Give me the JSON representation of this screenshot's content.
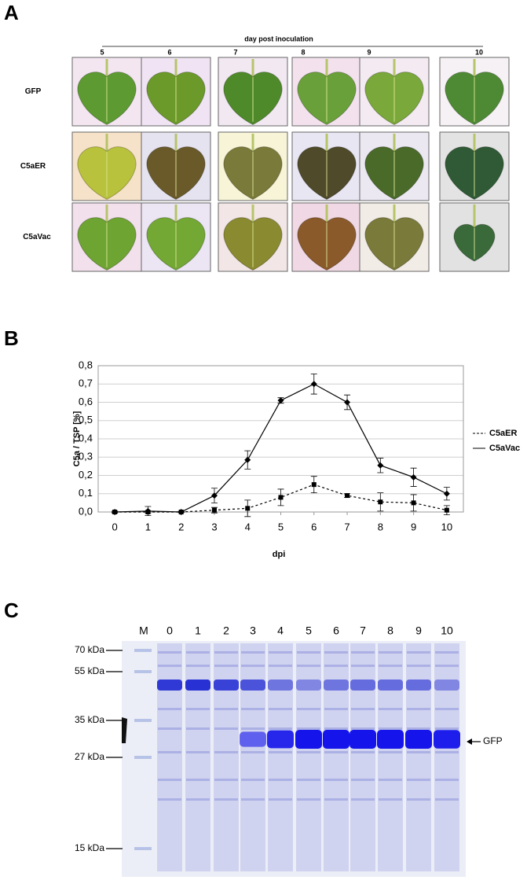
{
  "panel_a": {
    "label": "A",
    "axis_title": "day post inoculation",
    "columns": [
      "5",
      "6",
      "7",
      "8",
      "9",
      "10"
    ],
    "rows": [
      "GFP",
      "C5aER",
      "C5aVac"
    ]
  },
  "chart_data": {
    "type": "line",
    "label": "B",
    "xlabel": "dpi",
    "ylabel": "C5a / TSP [%]",
    "x": [
      0,
      1,
      2,
      3,
      4,
      5,
      6,
      7,
      8,
      9,
      10
    ],
    "xlim": [
      -0.5,
      10.5
    ],
    "xticks": [
      0,
      1,
      2,
      3,
      4,
      5,
      6,
      7,
      8,
      9,
      10
    ],
    "ylim": [
      0,
      0.8
    ],
    "yticks": [
      {
        "value": 0,
        "label": "0,0"
      },
      {
        "value": 0.1,
        "label": "0,1"
      },
      {
        "value": 0.2,
        "label": "0,2"
      },
      {
        "value": 0.3,
        "label": "0,3"
      },
      {
        "value": 0.4,
        "label": "0,4"
      },
      {
        "value": 0.5,
        "label": "0,5"
      },
      {
        "value": 0.6,
        "label": "0,6"
      },
      {
        "value": 0.7,
        "label": "0,7"
      },
      {
        "value": 0.8,
        "label": "0,8"
      }
    ],
    "grid": true,
    "legend": "right",
    "series": [
      {
        "name": "C5aER",
        "color": "#000000",
        "dashed": true,
        "marker": "square",
        "values": [
          0.0,
          0.0,
          0.0,
          0.01,
          0.02,
          0.08,
          0.15,
          0.09,
          0.055,
          0.05,
          0.01
        ],
        "errors": [
          0.005,
          0.005,
          0.003,
          0.015,
          0.045,
          0.045,
          0.045,
          0.01,
          0.05,
          0.045,
          0.025
        ]
      },
      {
        "name": "C5aVac",
        "color": "#000000",
        "dashed": false,
        "marker": "diamond",
        "values": [
          0.0,
          0.005,
          0.0,
          0.09,
          0.285,
          0.61,
          0.7,
          0.6,
          0.255,
          0.19,
          0.1
        ],
        "errors": [
          0.005,
          0.025,
          0.003,
          0.04,
          0.05,
          0.015,
          0.055,
          0.04,
          0.04,
          0.05,
          0.035
        ]
      }
    ]
  },
  "panel_c": {
    "label": "C",
    "lanes": [
      "M",
      "0",
      "1",
      "2",
      "3",
      "4",
      "5",
      "6",
      "7",
      "8",
      "9",
      "10"
    ],
    "markers": [
      "70 kDa",
      "55 kDa",
      "35 kDa",
      "27 kDa",
      "15 kDa"
    ],
    "band_label": "GFP"
  }
}
